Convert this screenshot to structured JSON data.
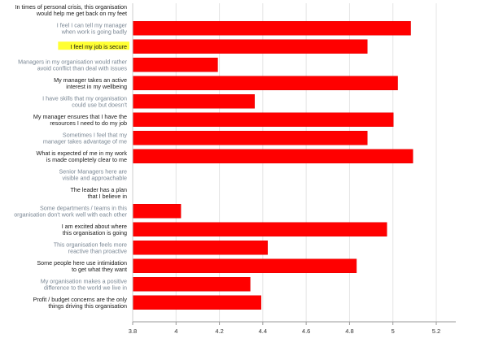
{
  "chart_data": {
    "type": "bar",
    "orientation": "horizontal",
    "title": "",
    "xlabel": "",
    "ylabel": "",
    "xlim": [
      3.8,
      5.3
    ],
    "xticks": [
      "3.8",
      "4",
      "4.2",
      "4.4",
      "4.6",
      "4.8",
      "5",
      "5.2"
    ],
    "grid": true,
    "legend": "none",
    "bar_color": "#ff0000",
    "highlight_color": "#ffff33",
    "categories": [
      {
        "line1": "In times of personal crisis, this organisation",
        "line2": "would help me get back on my feet",
        "value": null,
        "muted": false,
        "highlight": false
      },
      {
        "line1": "I feel I can tell my manager",
        "line2": "when work is going badly",
        "value": 5.08,
        "muted": true,
        "highlight": false
      },
      {
        "line1": "I feel my job is secure",
        "line2": "",
        "value": 4.88,
        "muted": false,
        "highlight": true
      },
      {
        "line1": "Managers in my organisation would rather",
        "line2": "avoid conflict than deal with issues",
        "value": 4.19,
        "muted": true,
        "highlight": false
      },
      {
        "line1": "My manager takes an active",
        "line2": "interest in my wellbeing",
        "value": 5.02,
        "muted": false,
        "highlight": false
      },
      {
        "line1": "I have skills that my organisation",
        "line2": "could use but doesn't",
        "value": 4.36,
        "muted": true,
        "highlight": false
      },
      {
        "line1": "My manager ensures that I have the",
        "line2": "resources I need to do my job",
        "value": 5.0,
        "muted": false,
        "highlight": false
      },
      {
        "line1": "Sometimes I feel that my",
        "line2": "manager takes advantage of me",
        "value": 4.88,
        "muted": true,
        "highlight": false
      },
      {
        "line1": "What is expected of me in my work",
        "line2": "is made completely clear to me",
        "value": 5.09,
        "muted": false,
        "highlight": false
      },
      {
        "line1": "Senior Managers here are",
        "line2": "visible and approachable",
        "value": null,
        "muted": true,
        "highlight": false
      },
      {
        "line1": "The leader has a plan",
        "line2": "that I believe in",
        "value": null,
        "muted": false,
        "highlight": false
      },
      {
        "line1": "Some departments / teams in this",
        "line2": "organisation don't work well with each other",
        "value": 4.02,
        "muted": true,
        "highlight": false
      },
      {
        "line1": "I am excited about where",
        "line2": "this organisation is going",
        "value": 4.97,
        "muted": false,
        "highlight": false
      },
      {
        "line1": "This organisation feels more",
        "line2": "reactive than proactive",
        "value": 4.42,
        "muted": true,
        "highlight": false
      },
      {
        "line1": "Some people here use intimidation",
        "line2": "to get what they want",
        "value": 4.83,
        "muted": false,
        "highlight": false
      },
      {
        "line1": "My organisation makes a positive",
        "line2": "difference to the world we live in",
        "value": 4.34,
        "muted": true,
        "highlight": false
      },
      {
        "line1": "Profit / budget concerns are the only",
        "line2": "things driving this organisation",
        "value": 4.39,
        "muted": false,
        "highlight": false
      }
    ]
  }
}
